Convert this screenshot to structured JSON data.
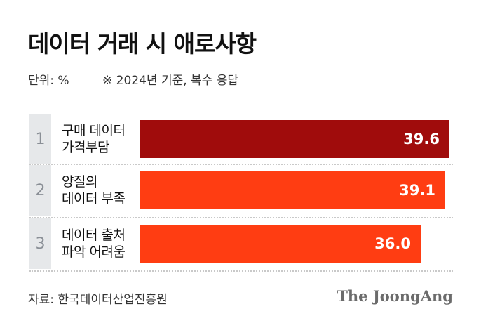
{
  "title": "데이터 거래 시 애로사항",
  "unit_label": "단위: %",
  "note": "※ 2024년 기준, 복수 응답",
  "source": "자료: 한국데이터산업진흥원",
  "brand": "The JoongAng",
  "colors": {
    "first_bar": "#a00c0c",
    "other_bars": "#ff3d12",
    "rank_bg": "#e6e8ea"
  },
  "chart_data": {
    "type": "bar",
    "orientation": "horizontal",
    "title": "데이터 거래 시 애로사항",
    "unit": "%",
    "grid": false,
    "xlim": [
      0,
      40
    ],
    "items": [
      {
        "rank": "1",
        "label_lines": [
          "구매 데이터",
          "가격부담"
        ],
        "value": 39.6,
        "value_label": "39.6"
      },
      {
        "rank": "2",
        "label_lines": [
          "양질의",
          "데이터 부족"
        ],
        "value": 39.1,
        "value_label": "39.1"
      },
      {
        "rank": "3",
        "label_lines": [
          "데이터 출처",
          "파악 어려움"
        ],
        "value": 36.0,
        "value_label": "36.0"
      }
    ]
  }
}
